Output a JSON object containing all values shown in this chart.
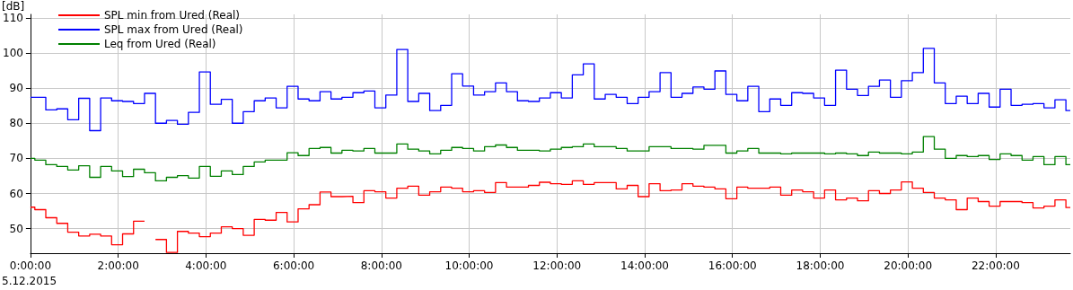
{
  "chart_data": {
    "type": "step",
    "ylabel": "[dB]",
    "annotations": [
      "5.12.2015"
    ],
    "x": [
      0,
      0.1,
      0.35,
      0.6,
      0.85,
      1.1,
      1.35,
      1.6,
      1.85,
      2.1,
      2.35,
      2.6,
      2.85,
      3.1,
      3.35,
      3.6,
      3.85,
      4.1,
      4.35,
      4.6,
      4.85,
      5.1,
      5.35,
      5.6,
      5.85,
      6.1,
      6.35,
      6.6,
      6.85,
      7.1,
      7.35,
      7.6,
      7.85,
      8.1,
      8.35,
      8.6,
      8.85,
      9.1,
      9.35,
      9.6,
      9.85,
      10.1,
      10.35,
      10.6,
      10.85,
      11.1,
      11.35,
      11.6,
      11.85,
      12.1,
      12.35,
      12.6,
      12.85,
      13.1,
      13.35,
      13.6,
      13.85,
      14.1,
      14.35,
      14.6,
      14.85,
      15.1,
      15.35,
      15.6,
      15.85,
      16.1,
      16.35,
      16.6,
      16.85,
      17.1,
      17.35,
      17.6,
      17.85,
      18.1,
      18.35,
      18.6,
      18.85,
      19.1,
      19.35,
      19.6,
      19.85,
      20.1,
      20.35,
      20.6,
      20.85,
      21.1,
      21.35,
      21.6,
      21.85,
      22.1,
      22.35,
      22.6,
      22.85,
      23.1,
      23.35,
      23.6
    ],
    "series": [
      {
        "name": "SPL min from Ured (Real)",
        "color": "#ff0000",
        "values": [
          56.1,
          55.4,
          53.1,
          51.5,
          49.0,
          47.9,
          48.4,
          47.9,
          45.4,
          48.5,
          52.1,
          null,
          46.9,
          43.2,
          49.2,
          48.7,
          47.7,
          48.7,
          50.5,
          50.0,
          48.1,
          52.6,
          52.4,
          54.6,
          51.9,
          55.6,
          56.8,
          60.4,
          59.1,
          59.2,
          57.4,
          60.8,
          60.5,
          58.7,
          61.5,
          62.1,
          59.5,
          60.5,
          61.8,
          61.5,
          60.5,
          60.8,
          60.3,
          63.1,
          61.8,
          61.8,
          62.3,
          63.2,
          62.8,
          62.6,
          63.6,
          62.6,
          63.1,
          63.1,
          61.3,
          62.3,
          59.1,
          62.8,
          60.8,
          61.0,
          62.8,
          62.1,
          61.8,
          61.3,
          58.5,
          61.8,
          61.5,
          61.5,
          61.8,
          59.5,
          61.0,
          60.5,
          58.7,
          61.0,
          58.2,
          58.7,
          57.9,
          60.8,
          60.0,
          61.0,
          63.3,
          61.5,
          60.3,
          58.7,
          58.2,
          55.4,
          58.7,
          57.7,
          56.4,
          57.7,
          57.7,
          57.4,
          55.9,
          56.4,
          58.2,
          56.0
        ]
      },
      {
        "name": "SPL max from Ured (Real)",
        "color": "#0000ff",
        "values": [
          87.4,
          87.4,
          83.8,
          84.1,
          81.0,
          87.1,
          77.9,
          87.2,
          86.4,
          86.2,
          85.6,
          88.5,
          80.0,
          80.8,
          79.7,
          83.1,
          94.6,
          85.4,
          86.8,
          80.0,
          83.3,
          86.4,
          87.2,
          84.4,
          90.5,
          86.9,
          86.4,
          89.0,
          86.9,
          87.4,
          88.7,
          89.2,
          84.4,
          88.0,
          101.0,
          86.2,
          88.5,
          83.6,
          85.1,
          94.1,
          90.6,
          88.0,
          89.0,
          91.5,
          89.0,
          86.4,
          86.2,
          87.2,
          88.7,
          87.2,
          93.8,
          96.9,
          86.9,
          88.2,
          87.4,
          85.6,
          87.4,
          89.0,
          94.4,
          87.4,
          88.5,
          90.3,
          89.7,
          94.9,
          88.2,
          86.4,
          90.5,
          83.3,
          86.9,
          85.1,
          88.7,
          88.5,
          87.2,
          85.1,
          95.1,
          89.7,
          87.9,
          90.5,
          92.3,
          87.4,
          92.1,
          94.4,
          101.3,
          91.5,
          85.6,
          87.7,
          85.6,
          88.5,
          84.6,
          89.7,
          85.1,
          85.4,
          85.6,
          84.4,
          86.7,
          83.6
        ]
      },
      {
        "name": "Leq from Ured (Real)",
        "color": "#008000",
        "values": [
          70.0,
          69.5,
          68.2,
          67.7,
          66.7,
          67.9,
          64.6,
          67.7,
          66.4,
          64.8,
          66.9,
          65.9,
          63.6,
          64.6,
          65.1,
          64.4,
          67.7,
          64.9,
          66.4,
          65.4,
          67.7,
          69.0,
          69.5,
          69.5,
          71.6,
          70.8,
          72.8,
          73.1,
          71.5,
          72.3,
          72.1,
          72.8,
          71.5,
          71.5,
          74.1,
          72.6,
          72.1,
          71.3,
          72.3,
          73.1,
          72.8,
          72.1,
          73.3,
          73.8,
          73.1,
          72.3,
          72.3,
          72.1,
          72.6,
          73.1,
          73.3,
          74.1,
          73.3,
          73.3,
          72.8,
          72.1,
          72.1,
          73.3,
          73.3,
          72.8,
          72.8,
          72.6,
          73.7,
          73.7,
          71.5,
          72.1,
          72.8,
          71.5,
          71.5,
          71.3,
          71.5,
          71.5,
          71.5,
          71.3,
          71.5,
          71.3,
          70.8,
          71.8,
          71.5,
          71.5,
          71.3,
          71.8,
          76.2,
          72.6,
          70.0,
          70.8,
          70.5,
          70.8,
          69.7,
          71.3,
          70.8,
          69.5,
          70.5,
          68.2,
          70.5,
          68.2
        ]
      }
    ],
    "xlim": [
      0,
      23.7
    ],
    "xticks": [
      {
        "value": 0,
        "label": "0:00:00"
      },
      {
        "value": 2,
        "label": "2:00:00"
      },
      {
        "value": 4,
        "label": "4:00:00"
      },
      {
        "value": 6,
        "label": "6:00:00"
      },
      {
        "value": 8,
        "label": "8:00:00"
      },
      {
        "value": 10,
        "label": "10:00:00"
      },
      {
        "value": 12,
        "label": "12:00:00"
      },
      {
        "value": 14,
        "label": "14:00:00"
      },
      {
        "value": 16,
        "label": "16:00:00"
      },
      {
        "value": 18,
        "label": "18:00:00"
      },
      {
        "value": 20,
        "label": "20:00:00"
      },
      {
        "value": 22,
        "label": "22:00:00"
      }
    ],
    "ylim": [
      43,
      111
    ],
    "yticks": [
      50,
      60,
      70,
      80,
      90,
      100,
      110
    ],
    "grid": true,
    "legend": "top left"
  }
}
